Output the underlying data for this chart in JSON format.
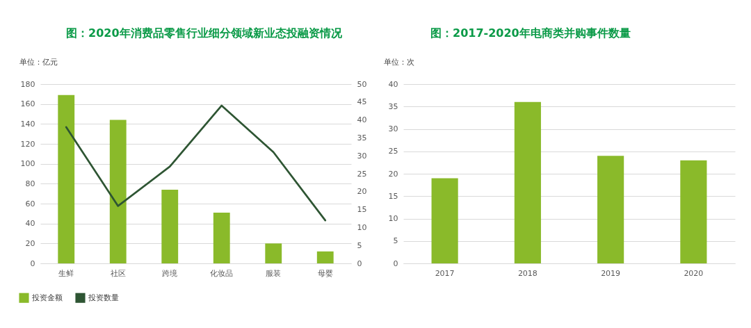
{
  "chart_data": [
    {
      "type": "bar",
      "title": "图：2020年消费品零售行业细分领域新业态投融资情况",
      "ylabel": "单位：亿元",
      "categories": [
        "生鲜",
        "社区",
        "跨境",
        "化妆品",
        "服装",
        "母婴"
      ],
      "series": [
        {
          "name": "投资金额",
          "type": "bar",
          "color": "#8aba2a",
          "values": [
            169,
            144,
            74,
            51,
            20,
            12
          ]
        },
        {
          "name": "投资数量",
          "type": "line",
          "axis": "y2",
          "color": "#2e5533",
          "values": [
            38,
            16,
            27,
            44,
            31,
            12
          ]
        }
      ],
      "ylim": [
        0,
        180
      ],
      "yticks": [
        0,
        20,
        40,
        60,
        80,
        100,
        120,
        140,
        160,
        180
      ],
      "y2lim": [
        0,
        50
      ],
      "y2ticks": [
        0,
        5,
        10,
        15,
        20,
        25,
        30,
        35,
        40,
        45,
        50
      ],
      "grid": "y",
      "legend": "bottom left",
      "line_style": "solid"
    },
    {
      "type": "bar",
      "title": "图：2017-2020年电商类并购事件数量",
      "ylabel": "单位：次",
      "categories": [
        "2017",
        "2018",
        "2019",
        "2020"
      ],
      "values": [
        19,
        36,
        24,
        23
      ],
      "color": "#8aba2a",
      "ylim": [
        0,
        40
      ],
      "yticks": [
        0,
        5,
        10,
        15,
        20,
        25,
        30,
        35,
        40
      ],
      "grid": "y",
      "legend": false
    }
  ]
}
